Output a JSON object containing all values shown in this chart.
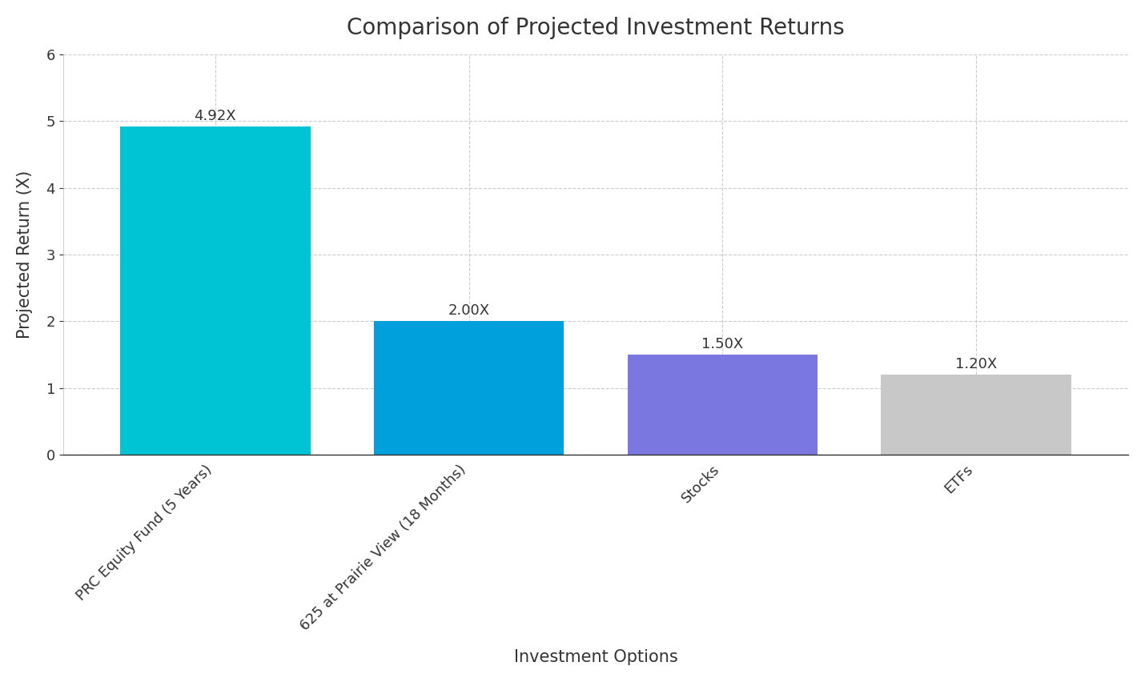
{
  "title": "Comparison of Projected Investment Returns",
  "categories": [
    "PRC Equity Fund (5 Years)",
    "625 at Prairie View (18 Months)",
    "Stocks",
    "ETFs"
  ],
  "values": [
    4.92,
    2.0,
    1.5,
    1.2
  ],
  "labels": [
    "4.92X",
    "2.00X",
    "1.50X",
    "1.20X"
  ],
  "bar_colors": [
    "#00C4D4",
    "#00A0DC",
    "#7B77E0",
    "#C8C8C8"
  ],
  "xlabel": "Investment Options",
  "ylabel": "Projected Return (X)",
  "ylim": [
    0,
    6
  ],
  "yticks": [
    0,
    1,
    2,
    3,
    4,
    5,
    6
  ],
  "title_fontsize": 20,
  "label_fontsize": 15,
  "tick_fontsize": 13,
  "bar_label_fontsize": 13,
  "background_color": "#FFFFFF",
  "grid_color": "#AAAAAA",
  "spine_color": "#BBBBBB"
}
